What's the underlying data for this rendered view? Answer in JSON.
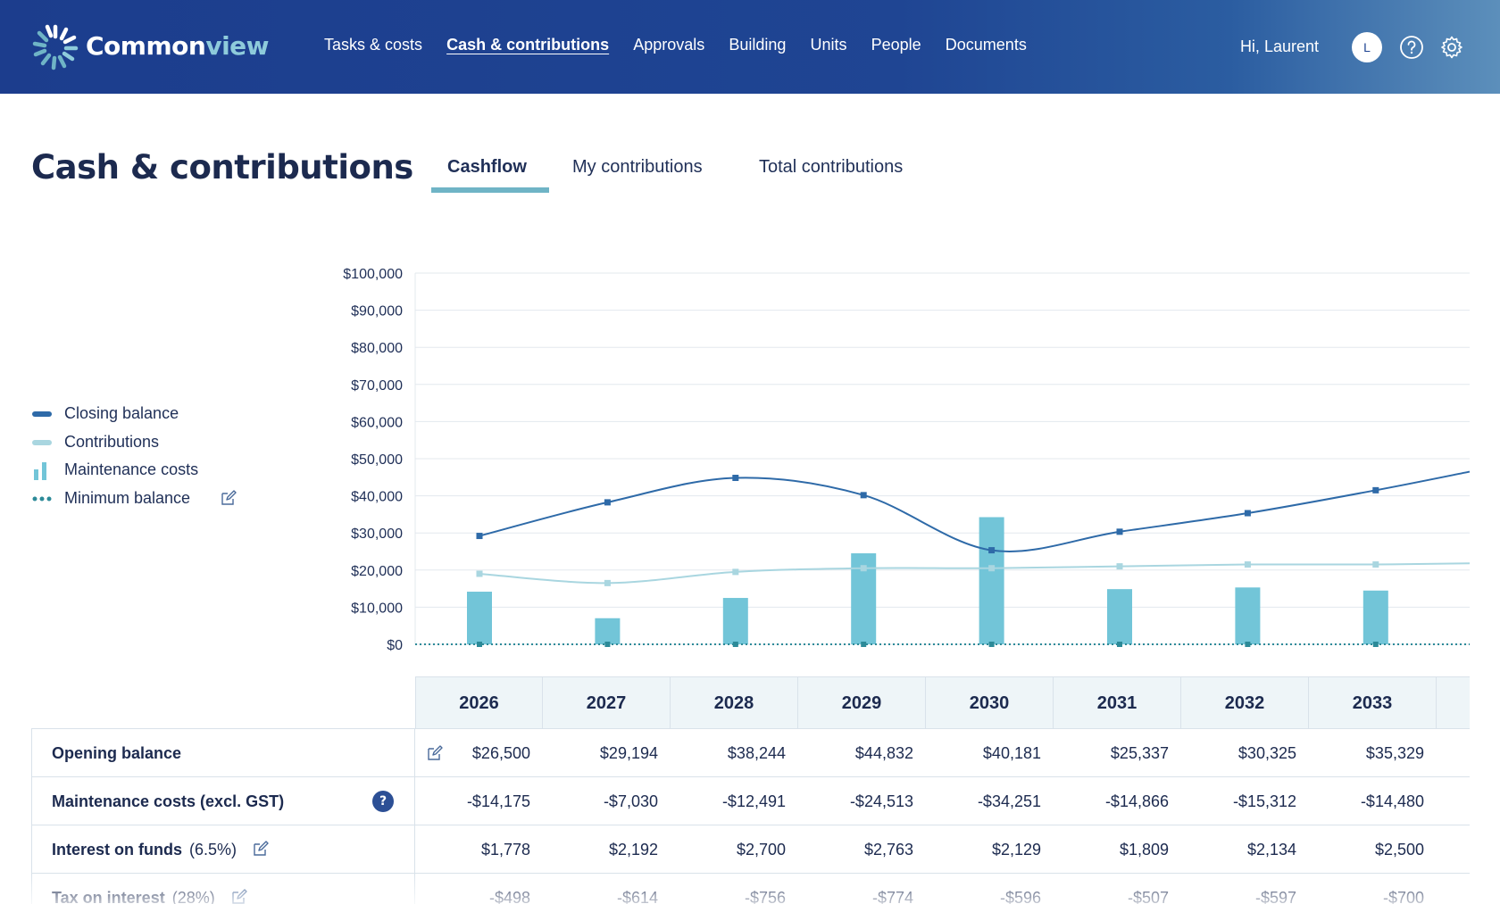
{
  "app": {
    "logo_prefix": "Common",
    "logo_suffix": "view"
  },
  "nav": {
    "items": [
      {
        "label": "Tasks & costs"
      },
      {
        "label": "Cash & contributions",
        "active": true
      },
      {
        "label": "Approvals"
      },
      {
        "label": "Building"
      },
      {
        "label": "Units"
      },
      {
        "label": "People"
      },
      {
        "label": "Documents"
      }
    ]
  },
  "user": {
    "greeting": "Hi, Laurent",
    "avatar_initial": "L"
  },
  "icons": {
    "help": "help-circle-icon",
    "settings": "gear-icon",
    "edit": "edit-pencil-icon",
    "info": "question-badge-icon"
  },
  "page": {
    "title": "Cash & contributions",
    "tabs": [
      {
        "label": "Cashflow",
        "active": true
      },
      {
        "label": "My contributions"
      },
      {
        "label": "Total contributions"
      }
    ]
  },
  "colors": {
    "header": "#1f4593",
    "closing_balance": "#2e6aa8",
    "contributions": "#a9d6e0",
    "maintenance": "#72c5d8",
    "minimum": "#2c8a98"
  },
  "legend": [
    {
      "label": "Closing balance",
      "swatch": "line"
    },
    {
      "label": "Contributions",
      "swatch": "light-line"
    },
    {
      "label": "Maintenance costs",
      "swatch": "bars"
    },
    {
      "label": "Minimum balance",
      "swatch": "dots",
      "editable": true
    }
  ],
  "chart_data": {
    "type": "bar",
    "categories": [
      "2026",
      "2027",
      "2028",
      "2029",
      "2030",
      "2031",
      "2032",
      "2033"
    ],
    "ylim": [
      0,
      100000
    ],
    "y_ticks": [
      "$0",
      "$10,000",
      "$20,000",
      "$30,000",
      "$40,000",
      "$50,000",
      "$60,000",
      "$70,000",
      "$80,000",
      "$90,000",
      "$100,000"
    ],
    "grid": true,
    "legend_position": "left",
    "series": [
      {
        "name": "Maintenance costs",
        "type": "bar",
        "values": [
          14175,
          7030,
          12491,
          24513,
          34251,
          14866,
          15312,
          14480
        ]
      },
      {
        "name": "Closing balance",
        "type": "line",
        "values": [
          29194,
          38244,
          44832,
          40181,
          25337,
          30325,
          35329,
          41500
        ],
        "continues_to": 46500
      },
      {
        "name": "Contributions",
        "type": "line",
        "values": [
          19000,
          16500,
          19500,
          20500,
          20500,
          21000,
          21500,
          21500
        ],
        "continues_to": 21800
      },
      {
        "name": "Minimum balance",
        "type": "dotted-line",
        "values": [
          0,
          0,
          0,
          0,
          0,
          0,
          0,
          0
        ]
      }
    ]
  },
  "table": {
    "columns": [
      "2026",
      "2027",
      "2028",
      "2029",
      "2030",
      "2031",
      "2032",
      "2033"
    ],
    "rows": [
      {
        "label": "Opening balance",
        "sub": "",
        "values": [
          "$26,500",
          "$29,194",
          "$38,244",
          "$44,832",
          "$40,181",
          "$25,337",
          "$30,325",
          "$35,329"
        ]
      },
      {
        "label": "Maintenance costs (excl. GST)",
        "sub": "",
        "info": "?",
        "values": [
          "-$14,175",
          "-$7,030",
          "-$12,491",
          "-$24,513",
          "-$34,251",
          "-$14,866",
          "-$15,312",
          "-$14,480"
        ]
      },
      {
        "label": "Interest on funds",
        "sub": "(6.5%)",
        "values": [
          "$1,778",
          "$2,192",
          "$2,700",
          "$2,763",
          "$2,129",
          "$1,809",
          "$2,134",
          "$2,500"
        ]
      },
      {
        "label": "Tax on interest",
        "sub": "(28%)",
        "values": [
          "-$498",
          "-$614",
          "-$756",
          "-$774",
          "-$596",
          "-$507",
          "-$597",
          "-$700"
        ]
      }
    ]
  }
}
